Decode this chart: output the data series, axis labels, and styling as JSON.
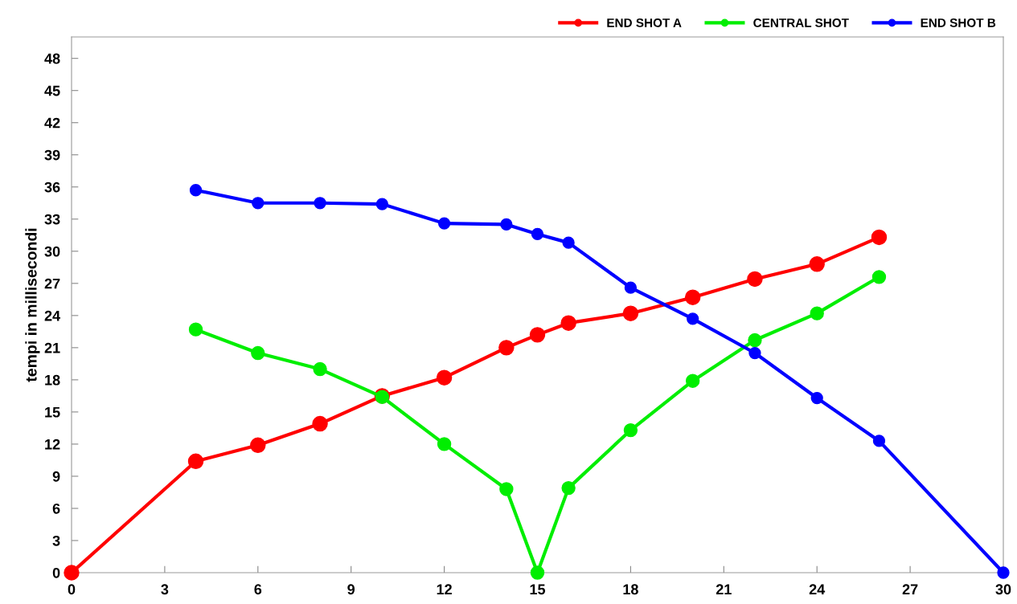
{
  "chart_data": {
    "type": "line",
    "ylabel": "tempi in millisecondi",
    "xlim": [
      0,
      30
    ],
    "xticks": [
      0,
      3,
      6,
      9,
      12,
      15,
      18,
      21,
      24,
      27,
      30
    ],
    "ylim": [
      0,
      50
    ],
    "yticks": [
      0,
      3,
      6,
      9,
      12,
      15,
      18,
      21,
      24,
      27,
      30,
      33,
      36,
      39,
      42,
      45,
      48
    ],
    "grid": false,
    "legend": "top right",
    "marker": "circle",
    "line_style": "solid",
    "series": [
      {
        "name": "END SHOT A",
        "color": "#ff0000",
        "x": [
          0,
          4,
          6,
          8,
          10,
          12,
          14,
          15,
          16,
          18,
          20,
          22,
          24,
          26
        ],
        "values": [
          0,
          10.4,
          11.9,
          13.9,
          16.5,
          18.2,
          21.0,
          22.2,
          23.3,
          24.2,
          25.7,
          27.4,
          28.8,
          31.3
        ]
      },
      {
        "name": "CENTRAL SHOT",
        "color": "#00ee00",
        "x": [
          4,
          6,
          8,
          10,
          12,
          14,
          15,
          16,
          18,
          20,
          22,
          24,
          26
        ],
        "values": [
          22.7,
          20.5,
          19.0,
          16.4,
          12.0,
          7.8,
          0,
          7.9,
          13.3,
          17.9,
          21.7,
          24.2,
          27.6
        ]
      },
      {
        "name": "END SHOT B",
        "color": "#0000ff",
        "x": [
          4,
          6,
          8,
          10,
          12,
          14,
          15,
          16,
          18,
          20,
          22,
          24,
          26,
          30
        ],
        "values": [
          35.7,
          34.5,
          34.5,
          34.4,
          32.6,
          32.5,
          31.6,
          30.8,
          26.6,
          23.7,
          20.5,
          16.3,
          12.3,
          0
        ]
      }
    ]
  }
}
